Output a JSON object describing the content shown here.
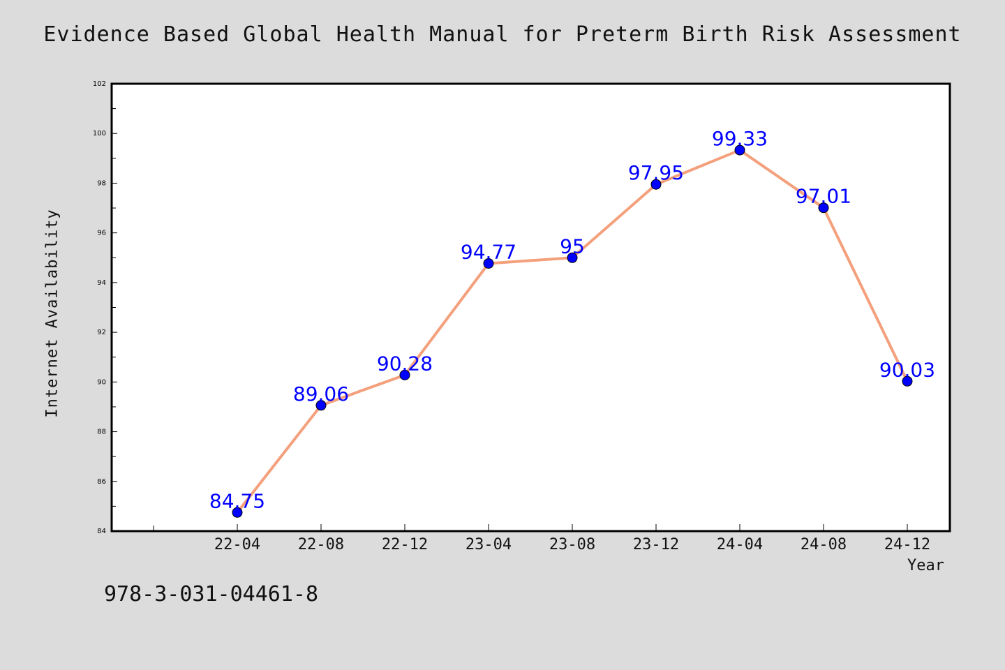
{
  "chart_data": {
    "type": "line",
    "title": "Evidence Based Global Health Manual for Preterm Birth Risk Assessment",
    "xlabel": "Year",
    "ylabel": "Internet Availability",
    "categories": [
      "22-04",
      "22-08",
      "22-12",
      "23-04",
      "23-08",
      "23-12",
      "24-04",
      "24-08",
      "24-12"
    ],
    "series": [
      {
        "values": [
          84.75,
          89.06,
          90.28,
          94.77,
          95,
          97.95,
          99.33,
          97.01,
          90.03
        ],
        "data_labels": [
          "84.75",
          "89.06",
          "90.28",
          "94.77",
          "95",
          "97.95",
          "99.33",
          "97.01",
          "90.03"
        ],
        "line_color": "#f4a07c",
        "marker_color": "#0000ff",
        "label_color": "#0000ff"
      }
    ],
    "ylim": [
      84,
      102
    ],
    "yticks": [
      84,
      86,
      88,
      90,
      92,
      94,
      96,
      98,
      100,
      102
    ],
    "grid": false,
    "legend": "none"
  },
  "footer": {
    "isbn": "978-3-031-04461-8"
  },
  "colors": {
    "background": "#dcdcdc",
    "plot_background": "#ffffff",
    "axis": "#000000"
  }
}
